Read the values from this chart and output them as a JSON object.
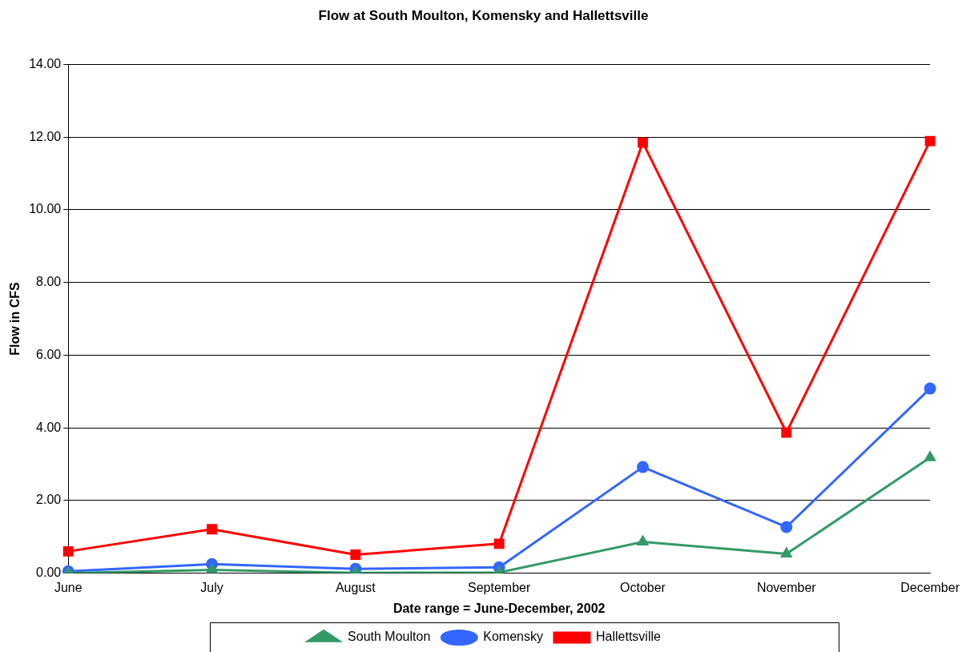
{
  "chart_data": {
    "type": "line",
    "title": "Flow at South Moulton, Komensky and Hallettsville",
    "xlabel": "Date range = June-December, 2002",
    "ylabel": "Flow in CFS",
    "categories": [
      "June",
      "July",
      "August",
      "September",
      "October",
      "November",
      "December"
    ],
    "series": [
      {
        "name": "South Moulton",
        "color": "#339966",
        "marker": "triangle",
        "values": [
          0.0,
          0.09,
          0.01,
          0.02,
          0.86,
          0.53,
          3.18
        ]
      },
      {
        "name": "Komensky",
        "color": "#3366ff",
        "marker": "circle",
        "values": [
          0.05,
          0.25,
          0.12,
          0.16,
          2.92,
          1.27,
          5.08
        ]
      },
      {
        "name": "Hallettsville",
        "color": "#ff0000",
        "marker": "square",
        "values": [
          0.6,
          1.21,
          0.51,
          0.81,
          11.85,
          3.87,
          11.89
        ]
      }
    ],
    "ylim": [
      0,
      14
    ],
    "yticks": [
      {
        "value": 0,
        "label": "0.00"
      },
      {
        "value": 2,
        "label": "2.00"
      },
      {
        "value": 4,
        "label": "4.00"
      },
      {
        "value": 6,
        "label": "6.00"
      },
      {
        "value": 8,
        "label": "8.00"
      },
      {
        "value": 10,
        "label": "10.00"
      },
      {
        "value": 12,
        "label": "12.00"
      },
      {
        "value": 14,
        "label": "14.00"
      }
    ],
    "grid": "y",
    "legend": "bottom",
    "line_style": "solid"
  }
}
